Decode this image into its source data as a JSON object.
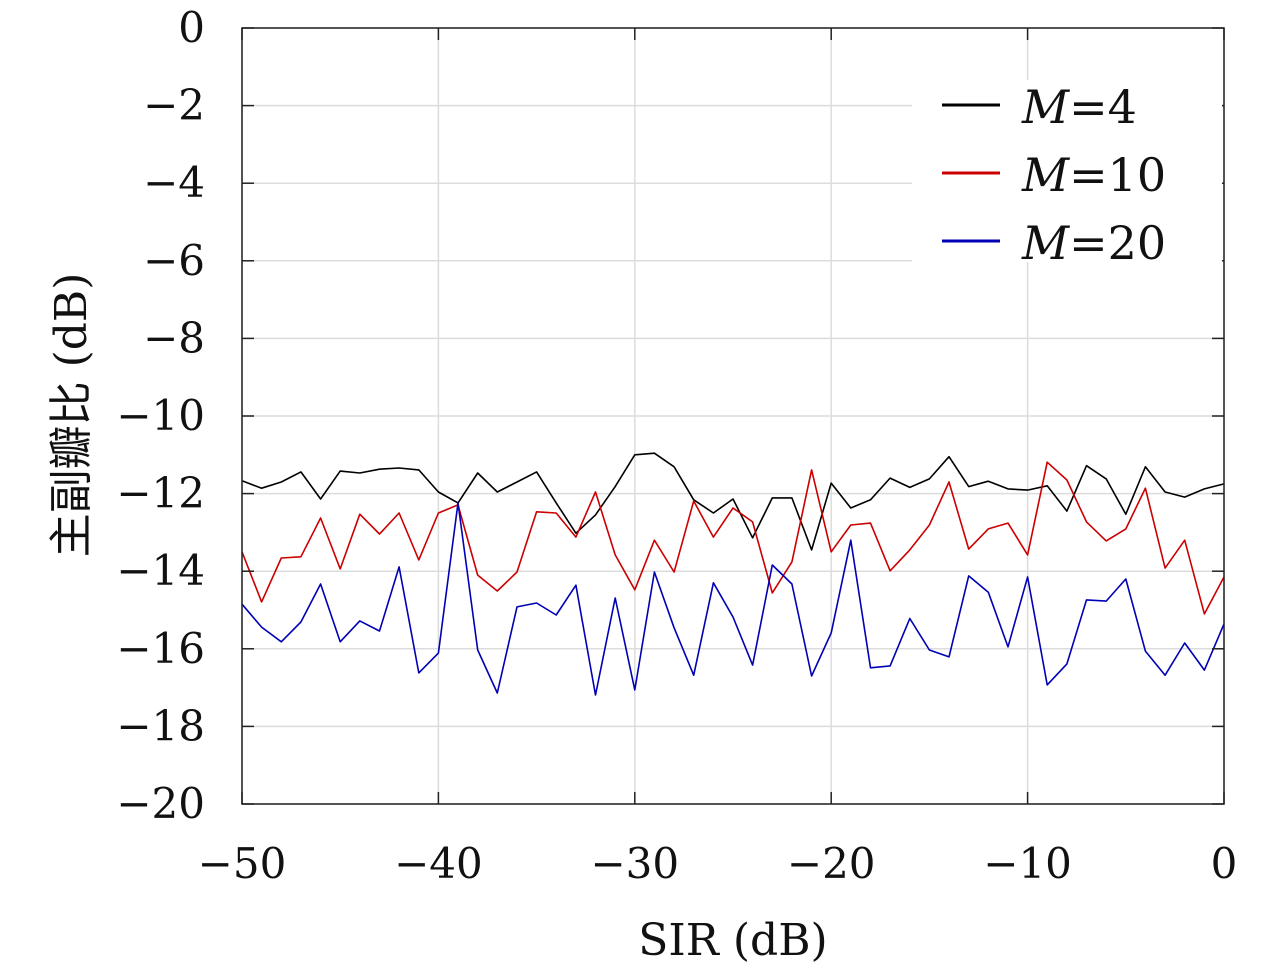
{
  "chart_data": {
    "type": "line",
    "title": "",
    "xlabel": "SIR (dB)",
    "ylabel": "主副瓣比 (dB)",
    "xlim": [
      -50,
      0
    ],
    "ylim": [
      -20,
      0
    ],
    "xticks": [
      -50,
      -40,
      -30,
      -20,
      -10,
      0
    ],
    "xtick_labels": [
      "−50",
      "−40",
      "−30",
      "−20",
      "−10",
      "0"
    ],
    "yticks": [
      0,
      -2,
      -4,
      -6,
      -8,
      -10,
      -12,
      -14,
      -16,
      -18,
      -20
    ],
    "ytick_labels": [
      "0",
      "−2",
      "−4",
      "−6",
      "−8",
      "−10",
      "−12",
      "−14",
      "−16",
      "−18",
      "−20"
    ],
    "grid": true,
    "legend_position": "top-right",
    "x": [
      -50,
      -49,
      -48,
      -47,
      -46,
      -45,
      -44,
      -43,
      -42,
      -41,
      -40,
      -39,
      -38,
      -37,
      -36,
      -35,
      -34,
      -33,
      -32,
      -31,
      -30,
      -29,
      -28,
      -27,
      -26,
      -25,
      -24,
      -23,
      -22,
      -21,
      -20,
      -19,
      -18,
      -17,
      -16,
      -15,
      -14,
      -13,
      -12,
      -11,
      -10,
      -9,
      -8,
      -7,
      -6,
      -5,
      -4,
      -3,
      -2,
      -1,
      0
    ],
    "series": [
      {
        "name": "M=4",
        "var": "M",
        "eq": "=4",
        "color": "#000000",
        "values": [
          -11.67,
          -11.86,
          -11.7,
          -11.44,
          -12.14,
          -11.42,
          -11.47,
          -11.37,
          -11.34,
          -11.39,
          -11.96,
          -12.24,
          -11.47,
          -11.96,
          -11.7,
          -11.44,
          -12.24,
          -13.02,
          -12.55,
          -11.82,
          -11.0,
          -10.96,
          -11.31,
          -12.16,
          -12.5,
          -12.14,
          -13.14,
          -12.11,
          -12.11,
          -13.45,
          -11.73,
          -12.37,
          -12.16,
          -11.6,
          -11.84,
          -11.62,
          -11.05,
          -11.82,
          -11.68,
          -11.88,
          -11.91,
          -11.8,
          -12.45,
          -11.28,
          -11.62,
          -12.53,
          -11.31,
          -11.96,
          -12.09,
          -11.88,
          -11.75
        ]
      },
      {
        "name": "M=10",
        "var": "M",
        "eq": "=10",
        "color": "#cc0000",
        "values": [
          -13.5,
          -14.79,
          -13.66,
          -13.63,
          -12.63,
          -13.94,
          -12.53,
          -13.04,
          -12.5,
          -13.71,
          -12.5,
          -12.29,
          -14.1,
          -14.51,
          -14.02,
          -12.47,
          -12.5,
          -13.12,
          -11.96,
          -13.58,
          -14.48,
          -13.2,
          -14.02,
          -12.19,
          -13.12,
          -12.37,
          -12.73,
          -14.56,
          -13.76,
          -11.39,
          -13.5,
          -12.81,
          -12.76,
          -13.99,
          -13.45,
          -12.81,
          -11.7,
          -13.43,
          -12.91,
          -12.76,
          -13.58,
          -11.19,
          -11.65,
          -12.73,
          -13.22,
          -12.91,
          -11.86,
          -13.92,
          -13.2,
          -15.1,
          -14.15
        ]
      },
      {
        "name": "M=20",
        "var": "M",
        "eq": "=20",
        "color": "#0000b4",
        "values": [
          -14.85,
          -15.44,
          -15.82,
          -15.31,
          -14.33,
          -15.82,
          -15.28,
          -15.54,
          -13.89,
          -16.62,
          -16.11,
          -12.24,
          -16.03,
          -17.14,
          -14.92,
          -14.82,
          -15.13,
          -14.36,
          -17.19,
          -14.69,
          -17.06,
          -14.02,
          -15.46,
          -16.68,
          -14.3,
          -15.18,
          -16.42,
          -13.84,
          -14.33,
          -16.7,
          -15.59,
          -13.2,
          -16.49,
          -16.44,
          -15.22,
          -16.03,
          -16.21,
          -14.12,
          -14.54,
          -15.95,
          -14.15,
          -16.93,
          -16.39,
          -14.74,
          -14.77,
          -14.2,
          -16.06,
          -16.68,
          -15.85,
          -16.55,
          -15.36
        ]
      }
    ]
  }
}
